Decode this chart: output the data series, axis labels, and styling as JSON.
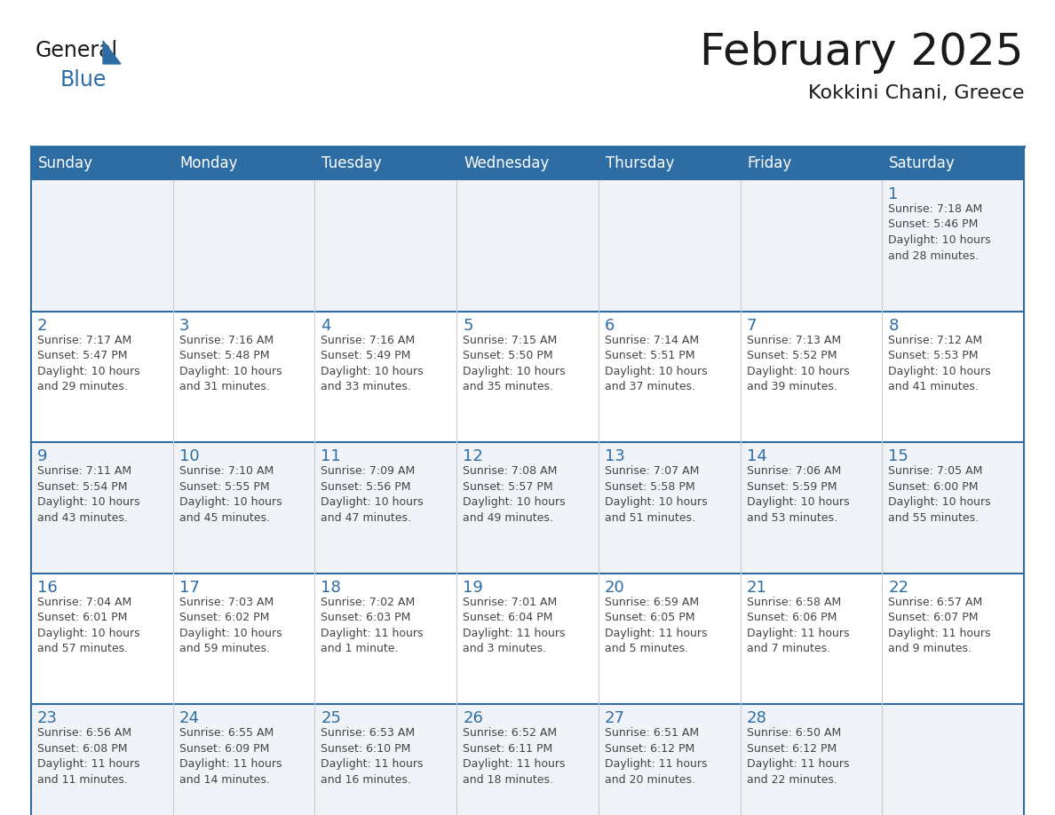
{
  "title": "February 2025",
  "subtitle": "Kokkini Chani, Greece",
  "header_bg": "#2E6DA4",
  "header_text": "#FFFFFF",
  "cell_bg_light": "#F0F4F8",
  "cell_bg_white": "#FFFFFF",
  "row_divider_color": "#2E6DA4",
  "col_divider_color": "#CCCCCC",
  "outer_border_color": "#2E6DA4",
  "day_text_color": "#2E6DA4",
  "info_text_color": "#444444",
  "days_of_week": [
    "Sunday",
    "Monday",
    "Tuesday",
    "Wednesday",
    "Thursday",
    "Friday",
    "Saturday"
  ],
  "weeks": [
    [
      {
        "day": "",
        "info": ""
      },
      {
        "day": "",
        "info": ""
      },
      {
        "day": "",
        "info": ""
      },
      {
        "day": "",
        "info": ""
      },
      {
        "day": "",
        "info": ""
      },
      {
        "day": "",
        "info": ""
      },
      {
        "day": "1",
        "info": "Sunrise: 7:18 AM\nSunset: 5:46 PM\nDaylight: 10 hours\nand 28 minutes."
      }
    ],
    [
      {
        "day": "2",
        "info": "Sunrise: 7:17 AM\nSunset: 5:47 PM\nDaylight: 10 hours\nand 29 minutes."
      },
      {
        "day": "3",
        "info": "Sunrise: 7:16 AM\nSunset: 5:48 PM\nDaylight: 10 hours\nand 31 minutes."
      },
      {
        "day": "4",
        "info": "Sunrise: 7:16 AM\nSunset: 5:49 PM\nDaylight: 10 hours\nand 33 minutes."
      },
      {
        "day": "5",
        "info": "Sunrise: 7:15 AM\nSunset: 5:50 PM\nDaylight: 10 hours\nand 35 minutes."
      },
      {
        "day": "6",
        "info": "Sunrise: 7:14 AM\nSunset: 5:51 PM\nDaylight: 10 hours\nand 37 minutes."
      },
      {
        "day": "7",
        "info": "Sunrise: 7:13 AM\nSunset: 5:52 PM\nDaylight: 10 hours\nand 39 minutes."
      },
      {
        "day": "8",
        "info": "Sunrise: 7:12 AM\nSunset: 5:53 PM\nDaylight: 10 hours\nand 41 minutes."
      }
    ],
    [
      {
        "day": "9",
        "info": "Sunrise: 7:11 AM\nSunset: 5:54 PM\nDaylight: 10 hours\nand 43 minutes."
      },
      {
        "day": "10",
        "info": "Sunrise: 7:10 AM\nSunset: 5:55 PM\nDaylight: 10 hours\nand 45 minutes."
      },
      {
        "day": "11",
        "info": "Sunrise: 7:09 AM\nSunset: 5:56 PM\nDaylight: 10 hours\nand 47 minutes."
      },
      {
        "day": "12",
        "info": "Sunrise: 7:08 AM\nSunset: 5:57 PM\nDaylight: 10 hours\nand 49 minutes."
      },
      {
        "day": "13",
        "info": "Sunrise: 7:07 AM\nSunset: 5:58 PM\nDaylight: 10 hours\nand 51 minutes."
      },
      {
        "day": "14",
        "info": "Sunrise: 7:06 AM\nSunset: 5:59 PM\nDaylight: 10 hours\nand 53 minutes."
      },
      {
        "day": "15",
        "info": "Sunrise: 7:05 AM\nSunset: 6:00 PM\nDaylight: 10 hours\nand 55 minutes."
      }
    ],
    [
      {
        "day": "16",
        "info": "Sunrise: 7:04 AM\nSunset: 6:01 PM\nDaylight: 10 hours\nand 57 minutes."
      },
      {
        "day": "17",
        "info": "Sunrise: 7:03 AM\nSunset: 6:02 PM\nDaylight: 10 hours\nand 59 minutes."
      },
      {
        "day": "18",
        "info": "Sunrise: 7:02 AM\nSunset: 6:03 PM\nDaylight: 11 hours\nand 1 minute."
      },
      {
        "day": "19",
        "info": "Sunrise: 7:01 AM\nSunset: 6:04 PM\nDaylight: 11 hours\nand 3 minutes."
      },
      {
        "day": "20",
        "info": "Sunrise: 6:59 AM\nSunset: 6:05 PM\nDaylight: 11 hours\nand 5 minutes."
      },
      {
        "day": "21",
        "info": "Sunrise: 6:58 AM\nSunset: 6:06 PM\nDaylight: 11 hours\nand 7 minutes."
      },
      {
        "day": "22",
        "info": "Sunrise: 6:57 AM\nSunset: 6:07 PM\nDaylight: 11 hours\nand 9 minutes."
      }
    ],
    [
      {
        "day": "23",
        "info": "Sunrise: 6:56 AM\nSunset: 6:08 PM\nDaylight: 11 hours\nand 11 minutes."
      },
      {
        "day": "24",
        "info": "Sunrise: 6:55 AM\nSunset: 6:09 PM\nDaylight: 11 hours\nand 14 minutes."
      },
      {
        "day": "25",
        "info": "Sunrise: 6:53 AM\nSunset: 6:10 PM\nDaylight: 11 hours\nand 16 minutes."
      },
      {
        "day": "26",
        "info": "Sunrise: 6:52 AM\nSunset: 6:11 PM\nDaylight: 11 hours\nand 18 minutes."
      },
      {
        "day": "27",
        "info": "Sunrise: 6:51 AM\nSunset: 6:12 PM\nDaylight: 11 hours\nand 20 minutes."
      },
      {
        "day": "28",
        "info": "Sunrise: 6:50 AM\nSunset: 6:12 PM\nDaylight: 11 hours\nand 22 minutes."
      },
      {
        "day": "",
        "info": ""
      }
    ]
  ],
  "logo_text1": "General",
  "logo_text2": "Blue",
  "logo_color1": "#1a1a1a",
  "logo_color2": "#2E6DA4",
  "logo_triangle_color": "#2E6DA4",
  "title_fontsize": 36,
  "subtitle_fontsize": 16,
  "header_fontsize": 12,
  "day_num_fontsize": 13,
  "info_fontsize": 9
}
